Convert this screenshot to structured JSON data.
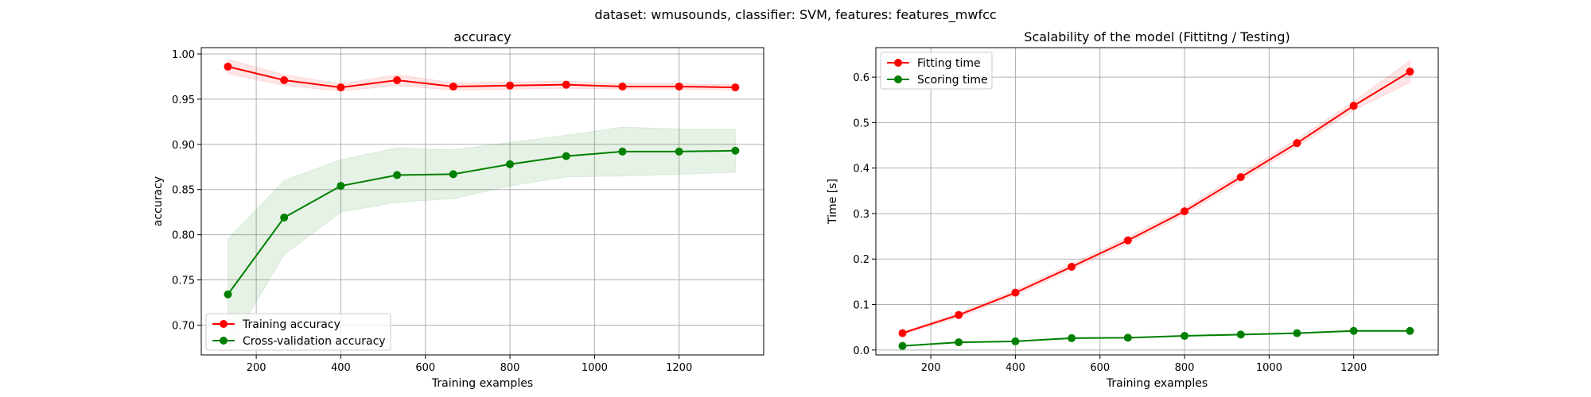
{
  "figure": {
    "suptitle": "dataset: wmusounds, classifier: SVM, features: features_mwfcc"
  },
  "colors": {
    "train": "#ff0000",
    "cv": "#008000",
    "grid": "#b0b0b0"
  },
  "chart_data": [
    {
      "type": "line",
      "title": "accuracy",
      "xlabel": "Training examples",
      "ylabel": "accuracy",
      "xlim": [
        70,
        1400
      ],
      "ylim": [
        0.667,
        1.007
      ],
      "xticks": [
        200,
        400,
        600,
        800,
        1000,
        1200
      ],
      "yticks": [
        0.7,
        0.75,
        0.8,
        0.85,
        0.9,
        0.95,
        1.0
      ],
      "ytick_labels": [
        "0.70",
        "0.75",
        "0.80",
        "0.85",
        "0.90",
        "0.95",
        "1.00"
      ],
      "grid": true,
      "legend_position": "lower-left",
      "x": [
        133,
        266,
        400,
        533,
        666,
        800,
        933,
        1066,
        1200,
        1333
      ],
      "series": [
        {
          "name": "Training accuracy",
          "color": "#ff0000",
          "values": [
            0.986,
            0.971,
            0.963,
            0.971,
            0.964,
            0.965,
            0.966,
            0.964,
            0.964,
            0.963
          ],
          "band_low": [
            0.978,
            0.965,
            0.959,
            0.965,
            0.96,
            0.961,
            0.962,
            0.961,
            0.961,
            0.96
          ],
          "band_high": [
            0.994,
            0.977,
            0.967,
            0.977,
            0.968,
            0.969,
            0.97,
            0.967,
            0.967,
            0.966
          ]
        },
        {
          "name": "Cross-validation accuracy",
          "color": "#008000",
          "values": [
            0.734,
            0.819,
            0.854,
            0.866,
            0.867,
            0.878,
            0.887,
            0.892,
            0.892,
            0.893
          ],
          "band_low": [
            0.673,
            0.778,
            0.825,
            0.836,
            0.84,
            0.854,
            0.864,
            0.865,
            0.867,
            0.869
          ],
          "band_high": [
            0.795,
            0.86,
            0.883,
            0.896,
            0.894,
            0.902,
            0.91,
            0.919,
            0.917,
            0.917
          ]
        }
      ]
    },
    {
      "type": "line",
      "title": "Scalability of the model (Fittitng / Testing)",
      "xlabel": "Training examples",
      "ylabel": "Time [s]",
      "xlim": [
        70,
        1400
      ],
      "ylim": [
        -0.0108,
        0.6648
      ],
      "xticks": [
        200,
        400,
        600,
        800,
        1000,
        1200
      ],
      "yticks": [
        0.0,
        0.1,
        0.2,
        0.3,
        0.4,
        0.5,
        0.6
      ],
      "ytick_labels": [
        "0.0",
        "0.1",
        "0.2",
        "0.3",
        "0.4",
        "0.5",
        "0.6"
      ],
      "grid": true,
      "legend_position": "upper-left",
      "x": [
        133,
        266,
        400,
        533,
        666,
        800,
        933,
        1066,
        1200,
        1333
      ],
      "series": [
        {
          "name": "Fitting time",
          "color": "#ff0000",
          "values": [
            0.037,
            0.077,
            0.126,
            0.183,
            0.241,
            0.305,
            0.38,
            0.455,
            0.537,
            0.612
          ],
          "band_low": [
            0.034,
            0.072,
            0.12,
            0.177,
            0.234,
            0.298,
            0.372,
            0.447,
            0.527,
            0.588
          ],
          "band_high": [
            0.04,
            0.082,
            0.132,
            0.189,
            0.248,
            0.312,
            0.388,
            0.463,
            0.547,
            0.636
          ]
        },
        {
          "name": "Scoring time",
          "color": "#008000",
          "values": [
            0.009,
            0.017,
            0.019,
            0.026,
            0.027,
            0.031,
            0.034,
            0.037,
            0.042,
            0.042
          ],
          "band_low": [
            0.008,
            0.016,
            0.018,
            0.025,
            0.026,
            0.03,
            0.033,
            0.036,
            0.041,
            0.041
          ],
          "band_high": [
            0.01,
            0.018,
            0.02,
            0.027,
            0.028,
            0.032,
            0.035,
            0.038,
            0.043,
            0.043
          ]
        }
      ]
    }
  ]
}
